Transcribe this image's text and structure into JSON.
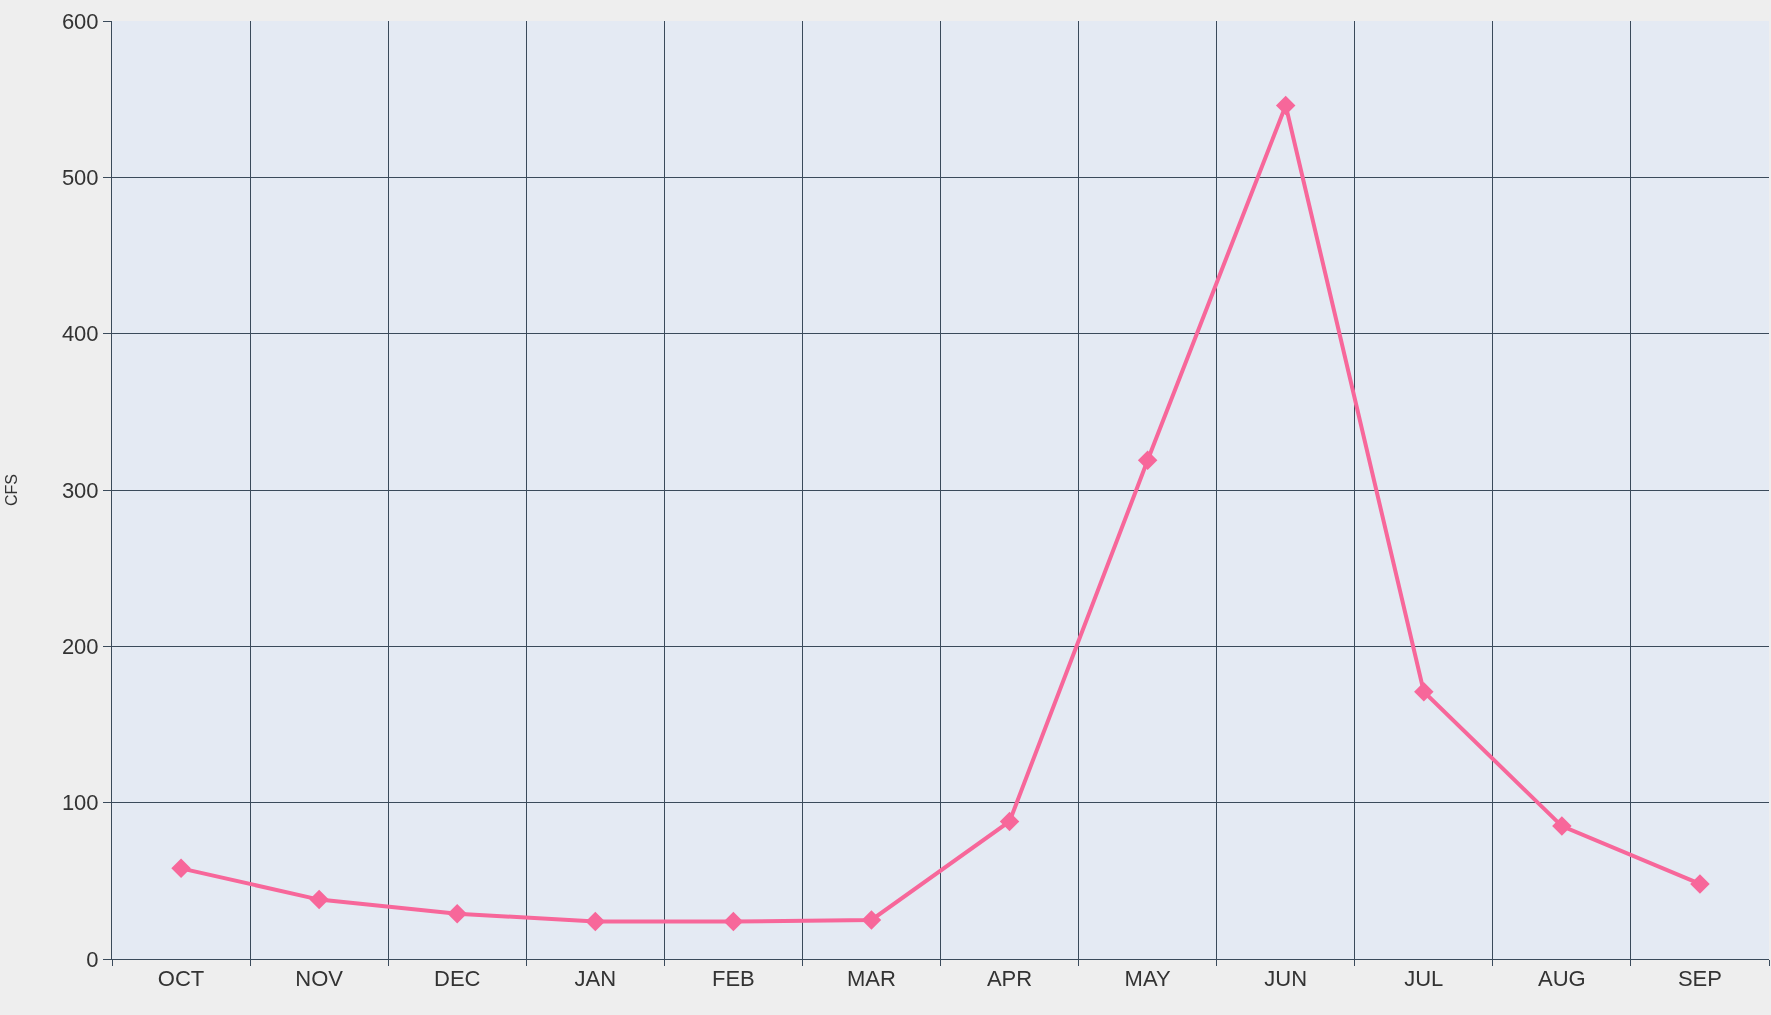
{
  "chart_data": {
    "type": "line",
    "ylabel": "CFS",
    "categories": [
      "OCT",
      "NOV",
      "DEC",
      "JAN",
      "FEB",
      "MAR",
      "APR",
      "MAY",
      "JUN",
      "JUL",
      "AUG",
      "SEP"
    ],
    "series": [
      {
        "color": "#f7679a",
        "values": [
          58,
          38,
          29,
          24,
          24,
          25,
          88,
          319,
          546,
          171,
          85,
          48
        ]
      }
    ],
    "ylim": [
      0,
      600
    ],
    "yticks": [
      0,
      100,
      200,
      300,
      400,
      500,
      600
    ],
    "grid": true,
    "marker": "diamond",
    "line_style": "solid",
    "legend": false
  }
}
